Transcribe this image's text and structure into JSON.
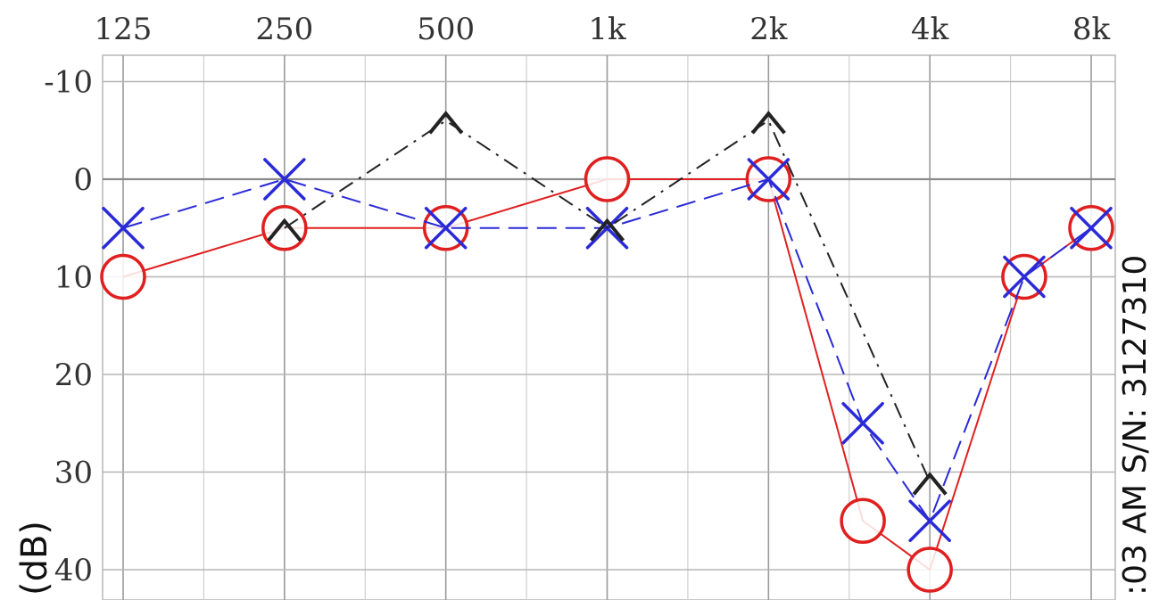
{
  "chart_data": {
    "type": "line",
    "title": "",
    "xlabel": "",
    "ylabel": "(dB)",
    "x_tick_labels": [
      "125",
      "250",
      "500",
      "1k",
      "2k",
      "4k",
      "8k"
    ],
    "x_ticks_hz": [
      125,
      250,
      500,
      1000,
      2000,
      4000,
      8000
    ],
    "x_scale": "log",
    "x_range_hz": [
      125,
      8000
    ],
    "y_tick_labels": [
      "-10",
      "0",
      "10",
      "20",
      "30",
      "40"
    ],
    "y_ticks": [
      -10,
      0,
      10,
      20,
      30,
      40
    ],
    "ylim": [
      -13,
      41
    ],
    "y_inverted": true,
    "grid": true,
    "side_text": ":03 AM  S/N: 3127310",
    "series": [
      {
        "marker": "circle",
        "color": "#e02020",
        "line_style": "solid",
        "points": [
          {
            "x": 125,
            "y": 10
          },
          {
            "x": 250,
            "y": 5
          },
          {
            "x": 500,
            "y": 5
          },
          {
            "x": 1000,
            "y": 0
          },
          {
            "x": 2000,
            "y": 0
          },
          {
            "x": 3000,
            "y": 35
          },
          {
            "x": 4000,
            "y": 40
          },
          {
            "x": 6000,
            "y": 10
          },
          {
            "x": 8000,
            "y": 5
          }
        ]
      },
      {
        "marker": "cross",
        "color": "#2a2ad8",
        "line_style": "dashed",
        "points": [
          {
            "x": 125,
            "y": 5
          },
          {
            "x": 250,
            "y": 0
          },
          {
            "x": 500,
            "y": 5
          },
          {
            "x": 1000,
            "y": 5
          },
          {
            "x": 2000,
            "y": 0
          },
          {
            "x": 3000,
            "y": 25
          },
          {
            "x": 4000,
            "y": 35
          },
          {
            "x": 6000,
            "y": 10
          },
          {
            "x": 8000,
            "y": 5
          }
        ]
      },
      {
        "marker": "caret",
        "color": "#222222",
        "line_style": "dashdot",
        "points": [
          {
            "x": 250,
            "y": 5
          },
          {
            "x": 500,
            "y": -6
          },
          {
            "x": 1000,
            "y": 5
          },
          {
            "x": 2000,
            "y": -6
          },
          {
            "x": 4000,
            "y": 31
          }
        ]
      }
    ]
  }
}
